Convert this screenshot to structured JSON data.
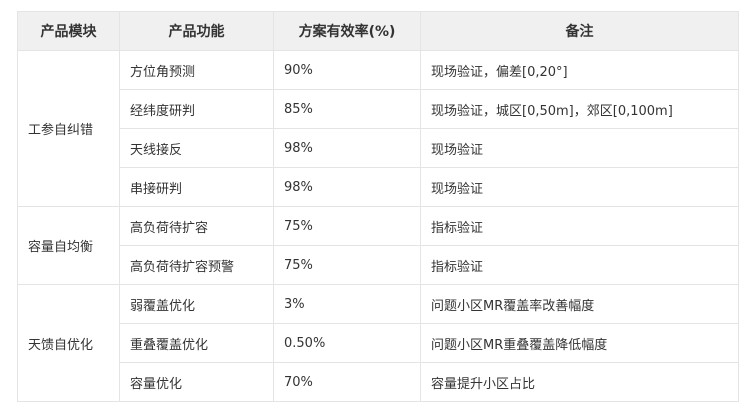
{
  "headers": [
    "产品模块",
    "产品功能",
    "方案有效率(%)",
    "备注"
  ],
  "groups": [
    {
      "module": "工参自纠错",
      "rows": [
        {
          "feature": "方位角预测",
          "rate": "90%",
          "note": "现场验证，偏差[0,20°]"
        },
        {
          "feature": "经纬度研判",
          "rate": "85%",
          "note": "现场验证，城区[0,50m]，郊区[0,100m]"
        },
        {
          "feature": "天线接反",
          "rate": "98%",
          "note": "现场验证"
        },
        {
          "feature": "串接研判",
          "rate": "98%",
          "note": "现场验证"
        }
      ]
    },
    {
      "module": "容量自均衡",
      "rows": [
        {
          "feature": "高负荷待扩容",
          "rate": "75%",
          "note": "指标验证"
        },
        {
          "feature": "高负荷待扩容预警",
          "rate": "75%",
          "note": "指标验证"
        }
      ]
    },
    {
      "module": "天馈自优化",
      "rows": [
        {
          "feature": "弱覆盖优化",
          "rate": "3%",
          "note": "问题小区MR覆盖率改善幅度"
        },
        {
          "feature": "重叠覆盖优化",
          "rate": "0.50%",
          "note": "问题小区MR重叠覆盖降低幅度"
        },
        {
          "feature": "容量优化",
          "rate": "70%",
          "note": "容量提升小区占比"
        }
      ]
    }
  ]
}
